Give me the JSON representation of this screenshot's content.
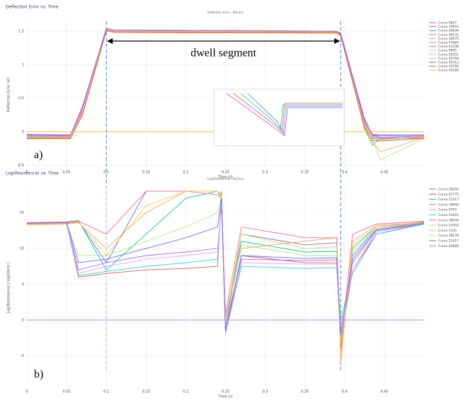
{
  "chart_data": [
    {
      "type": "line",
      "title": "Deflection Error vs. Time",
      "subtitle": "Deflection Error - Retrace",
      "x_label": "Time (s)",
      "y_label": "Deflection Error (V)",
      "xlim": [
        0,
        0.5
      ],
      "xticks": [
        0,
        0.05,
        0.1,
        0.15,
        0.2,
        0.25,
        0.3,
        0.35,
        0.4,
        0.45
      ],
      "ylim": [
        -0.55,
        1.65
      ],
      "yticks": [
        -0.5,
        0,
        0.5,
        1,
        1.5
      ],
      "grid": true,
      "vlines": [
        0.1,
        0.395
      ],
      "annotation": "dwell segment",
      "panel_label": "a)",
      "x": [
        0,
        0.055,
        0.07,
        0.1,
        0.11,
        0.39,
        0.395,
        0.425,
        0.435,
        0.445,
        0.5
      ],
      "series": [
        {
          "name": "Curve 6657",
          "color": "#636efa",
          "values": [
            -0.06,
            -0.06,
            0.33,
            1.52,
            1.5,
            1.49,
            1.45,
            0.12,
            -0.05,
            -0.08,
            -0.06
          ]
        },
        {
          "name": "Curve 19593",
          "color": "#ef553b",
          "values": [
            -0.08,
            -0.08,
            0.3,
            1.53,
            1.51,
            1.5,
            1.46,
            0.15,
            -0.1,
            -0.12,
            -0.08
          ]
        },
        {
          "name": "Curve 20636",
          "color": "#00cc96",
          "values": [
            -0.1,
            -0.1,
            0.28,
            1.51,
            1.49,
            1.48,
            1.44,
            0.05,
            -0.2,
            -0.1,
            -0.1
          ]
        },
        {
          "name": "Curve 46131",
          "color": "#ab63fa",
          "values": [
            -0.04,
            -0.05,
            0.38,
            1.54,
            1.52,
            1.5,
            1.47,
            0.2,
            -0.05,
            -0.06,
            -0.05
          ]
        },
        {
          "name": "Curve 10970",
          "color": "#ffa15a",
          "values": [
            -0.09,
            -0.09,
            0.25,
            1.5,
            1.48,
            1.47,
            1.43,
            0.1,
            -0.15,
            -0.3,
            -0.09
          ]
        },
        {
          "name": "Curve 47664",
          "color": "#19d3f3",
          "values": [
            -0.07,
            -0.07,
            0.36,
            1.52,
            1.5,
            1.49,
            1.45,
            0.08,
            -0.08,
            -0.1,
            -0.07
          ]
        },
        {
          "name": "Curve 41338",
          "color": "#ff6692",
          "values": [
            -0.05,
            -0.06,
            0.32,
            1.53,
            1.51,
            1.5,
            1.46,
            0.14,
            -0.06,
            -0.09,
            -0.06
          ]
        },
        {
          "name": "Curve 6605",
          "color": "#b6e880",
          "values": [
            -0.11,
            -0.11,
            0.27,
            1.51,
            1.49,
            1.48,
            1.44,
            0.03,
            -0.12,
            -0.42,
            -0.11
          ]
        },
        {
          "name": "Curve 26351",
          "color": "#ff97ff",
          "values": [
            -0.06,
            -0.07,
            0.34,
            1.52,
            1.5,
            1.49,
            1.45,
            0.11,
            -0.07,
            -0.08,
            -0.07
          ]
        },
        {
          "name": "Curve 46790",
          "color": "#fecb52",
          "values": [
            -0.08,
            -0.09,
            0.29,
            1.53,
            1.51,
            1.49,
            1.45,
            0.09,
            -0.09,
            -0.11,
            -0.09
          ]
        },
        {
          "name": "Curve 43312",
          "color": "#636efa",
          "values": [
            -0.05,
            -0.05,
            0.37,
            1.54,
            1.52,
            1.5,
            1.46,
            0.18,
            -0.04,
            -0.05,
            -0.05
          ]
        },
        {
          "name": "Curve 19796",
          "color": "#ef553b",
          "values": [
            -0.1,
            -0.1,
            0.26,
            1.51,
            1.49,
            1.48,
            1.44,
            0.06,
            -0.13,
            -0.14,
            -0.1
          ]
        },
        {
          "name": "Curve 43185",
          "color": "#e6c229",
          "values": [
            0,
            0,
            0,
            0,
            0,
            0,
            0,
            0,
            0,
            0,
            0
          ]
        }
      ]
    },
    {
      "type": "line",
      "title": "Log(Resistance) vs. Time",
      "subtitle": "Log(Resistance) - Retrace",
      "x_label": "Time (s)",
      "y_label": "Log(Resistance) [ log(Ohm) ]",
      "xlim": [
        0,
        0.5
      ],
      "xticks": [
        0,
        0.05,
        0.1,
        0.15,
        0.2,
        0.25,
        0.3,
        0.35,
        0.4,
        0.45
      ],
      "ylim": [
        -9.5,
        18.5
      ],
      "yticks": [
        -5,
        0,
        5,
        10,
        15
      ],
      "grid": true,
      "panel_label": "b)",
      "x": [
        0,
        0.05,
        0.065,
        0.1,
        0.15,
        0.2,
        0.24,
        0.245,
        0.25,
        0.27,
        0.35,
        0.39,
        0.395,
        0.41,
        0.44,
        0.5
      ],
      "series": [
        {
          "name": "Curve 28205",
          "color": "#636efa",
          "values": [
            13.5,
            13.6,
            13.8,
            8,
            18,
            18,
            18,
            17,
            -1,
            12,
            10.5,
            10.8,
            -4,
            9,
            12.8,
            13.6
          ]
        },
        {
          "name": "Curve 41775",
          "color": "#ef553b",
          "values": [
            13.4,
            13.5,
            6,
            6.5,
            7,
            7.2,
            7.5,
            18,
            -2,
            9,
            8,
            8,
            -3,
            7,
            12,
            13.5
          ]
        },
        {
          "name": "Curve 51317",
          "color": "#00cc96",
          "values": [
            13.6,
            13.7,
            13.9,
            7,
            12,
            17,
            18,
            17.5,
            0,
            11,
            9.5,
            9.6,
            -5,
            10,
            13,
            13.7
          ]
        },
        {
          "name": "Curve 38400",
          "color": "#ab63fa",
          "values": [
            13.5,
            13.6,
            7,
            8,
            9,
            9.5,
            10,
            16,
            -1,
            8.5,
            8.3,
            8.4,
            -2,
            8,
            12.5,
            13.5
          ]
        },
        {
          "name": "Curve 9755",
          "color": "#ffa15a",
          "values": [
            13.3,
            13.4,
            13.6,
            10,
            15,
            18,
            18,
            17,
            0.5,
            10,
            11,
            11.5,
            -6,
            11,
            13.2,
            13.6
          ]
        },
        {
          "name": "Curve 51651",
          "color": "#19d3f3",
          "values": [
            13.5,
            13.6,
            6.2,
            6.8,
            7.5,
            8,
            8.5,
            17,
            -2,
            7.5,
            7.2,
            7.3,
            0,
            6.5,
            12,
            13.4
          ]
        },
        {
          "name": "Curve 39244",
          "color": "#ff6692",
          "values": [
            13.6,
            13.7,
            13.8,
            12,
            18,
            18,
            17.5,
            17,
            1,
            13,
            11.5,
            11.5,
            -4,
            12,
            13.4,
            13.8
          ]
        },
        {
          "name": "Curve 23492",
          "color": "#b6e880",
          "values": [
            13.4,
            13.5,
            9,
            9,
            11,
            13,
            15,
            17.5,
            -1,
            10.5,
            9,
            9,
            -3,
            9.5,
            12.8,
            13.5
          ]
        },
        {
          "name": "Curve 3335",
          "color": "#ff97ff",
          "values": [
            13.5,
            13.6,
            6.5,
            7.5,
            8.5,
            9,
            9.5,
            16.5,
            -2,
            8,
            7.8,
            7.8,
            -1,
            7,
            12.3,
            13.5
          ]
        },
        {
          "name": "Curve 38178",
          "color": "#fecb52",
          "values": [
            13.4,
            13.5,
            13.7,
            9,
            16,
            18,
            18,
            17.2,
            0,
            12,
            10,
            10.2,
            -5,
            10.5,
            13,
            13.6
          ]
        },
        {
          "name": "Curve 23517",
          "color": "#636efa",
          "values": [
            13.5,
            13.6,
            8,
            8.5,
            10,
            11.5,
            13,
            17,
            -1.5,
            9,
            8.6,
            8.7,
            -2,
            8.5,
            12.6,
            13.5
          ]
        },
        {
          "name": "Curve 40666",
          "color": "#c77dff",
          "values": [
            0,
            0,
            0,
            0,
            0,
            0,
            0,
            0,
            0,
            0,
            0,
            0,
            0,
            0,
            0,
            0
          ]
        }
      ]
    }
  ]
}
